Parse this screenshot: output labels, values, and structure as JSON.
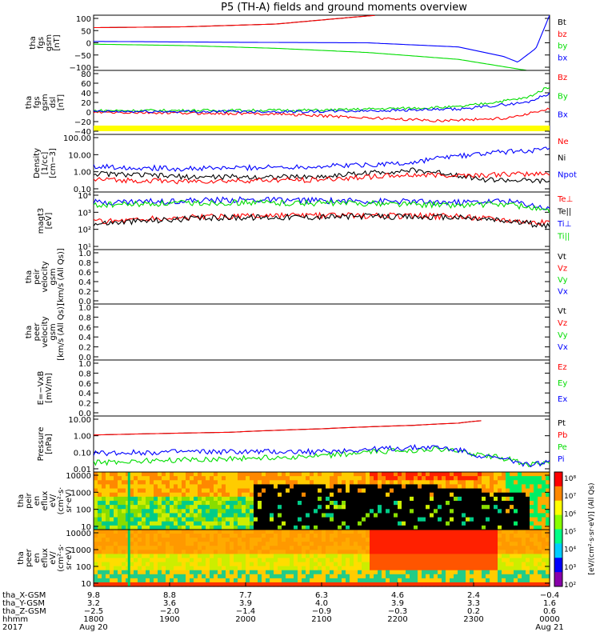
{
  "chart_data": {
    "type": "line",
    "title": "P5 (TH-A) fields and ground moments overview",
    "colors": {
      "black": "#000000",
      "red": "#ff0000",
      "green": "#00dd00",
      "blue": "#0000ff",
      "yellow": "#ffff00"
    },
    "panels": [
      {
        "id": "fgs-gsm",
        "ylabel": [
          "tha",
          "fgs",
          "gsm",
          "[nT]"
        ],
        "yticks": [
          "100",
          "50",
          "0",
          "−50",
          "−100"
        ],
        "legend": [
          "Bt",
          "bz",
          "by",
          "bx"
        ],
        "legend_colors": [
          "black",
          "red",
          "green",
          "blue"
        ],
        "series": [
          {
            "name": "Bt",
            "color": "black",
            "points": [
              [
                0,
                55
              ],
              [
                0.2,
                58
              ],
              [
                0.4,
                68
              ],
              [
                0.55,
                90
              ],
              [
                0.62,
                100
              ]
            ]
          },
          {
            "name": "bz",
            "color": "red",
            "points": [
              [
                0,
                55
              ],
              [
                0.2,
                58
              ],
              [
                0.4,
                68
              ],
              [
                0.55,
                90
              ],
              [
                0.62,
                100
              ]
            ]
          },
          {
            "name": "by",
            "color": "green",
            "points": [
              [
                0,
                -5
              ],
              [
                0.2,
                -10
              ],
              [
                0.4,
                -20
              ],
              [
                0.6,
                -35
              ],
              [
                0.8,
                -60
              ],
              [
                0.95,
                -100
              ]
            ]
          },
          {
            "name": "bx",
            "color": "blue",
            "points": [
              [
                0,
                5
              ],
              [
                0.3,
                2
              ],
              [
                0.6,
                0
              ],
              [
                0.8,
                -15
              ],
              [
                0.9,
                -50
              ],
              [
                0.93,
                -70
              ],
              [
                0.97,
                -20
              ],
              [
                1.0,
                100
              ]
            ]
          }
        ]
      },
      {
        "id": "fgs-gsm-dsl",
        "ylabel": [
          "tha",
          "fgs",
          "gsm",
          "dsl",
          "[nT]"
        ],
        "yticks": [
          "80",
          "60",
          "40",
          "20",
          "0",
          "−20",
          "−40"
        ],
        "legend": [
          "Bz",
          "By",
          "Bx"
        ],
        "legend_colors": [
          "red",
          "green",
          "blue"
        ],
        "series": [
          {
            "name": "Bz",
            "color": "red",
            "points": [
              [
                0,
                -2
              ],
              [
                0.4,
                -5
              ],
              [
                0.75,
                -20
              ],
              [
                0.9,
                -15
              ],
              [
                1.0,
                5
              ]
            ]
          },
          {
            "name": "By",
            "color": "green",
            "points": [
              [
                0,
                2
              ],
              [
                0.5,
                3
              ],
              [
                0.8,
                10
              ],
              [
                0.95,
                30
              ],
              [
                1.0,
                55
              ]
            ]
          },
          {
            "name": "Bx",
            "color": "blue",
            "points": [
              [
                0,
                0
              ],
              [
                0.5,
                0
              ],
              [
                0.8,
                5
              ],
              [
                0.95,
                20
              ],
              [
                1.0,
                40
              ]
            ]
          }
        ]
      },
      {
        "id": "density",
        "ylabel": [
          "Density",
          "[1/cc]",
          "[cm−3]"
        ],
        "yticks": [
          "100.00",
          "10.00",
          "1.00",
          "0.10"
        ],
        "legend": [
          "Ne",
          "Ni",
          "Npot"
        ],
        "legend_colors": [
          "red",
          "black",
          "blue"
        ],
        "series": [
          {
            "name": "Ni",
            "color": "black",
            "points": [
              [
                0,
                0.5
              ],
              [
                0.2,
                0.3
              ],
              [
                0.5,
                0.3
              ],
              [
                0.7,
                0.8
              ],
              [
                0.85,
                0.2
              ],
              [
                1.0,
                0.15
              ]
            ]
          },
          {
            "name": "Ne",
            "color": "red",
            "points": [
              [
                0,
                0.2
              ],
              [
                0.2,
                0.15
              ],
              [
                0.5,
                0.2
              ],
              [
                0.7,
                0.4
              ],
              [
                0.85,
                0.4
              ],
              [
                1.0,
                0.5
              ]
            ]
          },
          {
            "name": "Npot",
            "color": "blue",
            "points": [
              [
                0,
                1.5
              ],
              [
                0.2,
                1.0
              ],
              [
                0.5,
                1.5
              ],
              [
                0.7,
                2.5
              ],
              [
                0.85,
                10
              ],
              [
                1.0,
                20
              ]
            ]
          }
        ]
      },
      {
        "id": "temp",
        "ylabel": [
          "magt3",
          "[eV]"
        ],
        "yticks": [
          "10⁴",
          "10³",
          "10²",
          "10¹"
        ],
        "legend": [
          "Te⊥",
          "Te||",
          "Ti⊥",
          "Ti||"
        ],
        "legend_colors": [
          "red",
          "black",
          "blue",
          "green"
        ],
        "series": [
          {
            "name": "Ti⊥",
            "color": "blue",
            "points": [
              [
                0,
                5000
              ],
              [
                0.3,
                7000
              ],
              [
                0.6,
                6000
              ],
              [
                0.8,
                5000
              ],
              [
                0.9,
                6000
              ],
              [
                1.0,
                2000
              ]
            ]
          },
          {
            "name": "Ti||",
            "color": "green",
            "points": [
              [
                0,
                3500
              ],
              [
                0.3,
                5000
              ],
              [
                0.6,
                4500
              ],
              [
                0.8,
                3500
              ],
              [
                0.9,
                4000
              ],
              [
                1.0,
                1500
              ]
            ]
          },
          {
            "name": "Te⊥",
            "color": "red",
            "points": [
              [
                0,
                400
              ],
              [
                0.3,
                800
              ],
              [
                0.6,
                900
              ],
              [
                0.8,
                800
              ],
              [
                1.0,
                300
              ]
            ]
          },
          {
            "name": "Te||",
            "color": "black",
            "points": [
              [
                0,
                300
              ],
              [
                0.3,
                700
              ],
              [
                0.6,
                800
              ],
              [
                0.8,
                700
              ],
              [
                1.0,
                200
              ]
            ]
          }
        ]
      },
      {
        "id": "peir-vel",
        "ylabel": [
          "tha",
          "peir",
          "velocity",
          "gsm",
          "[km/s (All Qs)]"
        ],
        "yticks": [
          "1.0",
          "0.8",
          "0.6",
          "0.4",
          "0.2",
          "0.0"
        ],
        "legend": [
          "Vt",
          "Vz",
          "Vy",
          "Vx"
        ],
        "legend_colors": [
          "black",
          "red",
          "green",
          "blue"
        ],
        "series": []
      },
      {
        "id": "peer-vel",
        "ylabel": [
          "tha",
          "peer",
          "velocity",
          "gsm",
          "[km/s (All Qs)]"
        ],
        "yticks": [
          "1.0",
          "0.8",
          "0.6",
          "0.4",
          "0.2",
          "0.0"
        ],
        "legend": [
          "Vt",
          "Vz",
          "Vy",
          "Vx"
        ],
        "legend_colors": [
          "black",
          "red",
          "green",
          "blue"
        ],
        "series": []
      },
      {
        "id": "efield",
        "ylabel": [
          "E=−VxB",
          "[mV/m]"
        ],
        "yticks": [
          "1.0",
          "0.8",
          "0.6",
          "0.4",
          "0.2",
          "0.0"
        ],
        "legend": [
          "Ez",
          "Ey",
          "Ex"
        ],
        "legend_colors": [
          "red",
          "green",
          "blue"
        ],
        "series": []
      },
      {
        "id": "pressure",
        "ylabel": [
          "Pressure",
          "[nPa]"
        ],
        "yticks": [
          "10.00",
          "1.00",
          "0.10",
          "0.01"
        ],
        "legend": [
          "Pt",
          "Pb",
          "Pe",
          "Pi"
        ],
        "legend_colors": [
          "black",
          "red",
          "green",
          "blue"
        ],
        "series": [
          {
            "name": "Pt",
            "color": "black",
            "points": [
              [
                0,
                1.2
              ],
              [
                0.3,
                1.8
              ],
              [
                0.5,
                3
              ],
              [
                0.7,
                5
              ],
              [
                0.8,
                7
              ],
              [
                0.85,
                10
              ]
            ]
          },
          {
            "name": "Pb",
            "color": "red",
            "points": [
              [
                0,
                1.2
              ],
              [
                0.3,
                1.8
              ],
              [
                0.5,
                3
              ],
              [
                0.7,
                5
              ],
              [
                0.8,
                7
              ],
              [
                0.85,
                10
              ]
            ]
          },
          {
            "name": "Pe",
            "color": "green",
            "points": [
              [
                0,
                0.02
              ],
              [
                0.2,
                0.03
              ],
              [
                0.5,
                0.05
              ],
              [
                0.75,
                0.15
              ],
              [
                0.85,
                0.06
              ],
              [
                0.95,
                0.015
              ],
              [
                1.0,
                0.02
              ]
            ]
          },
          {
            "name": "Pi",
            "color": "blue",
            "points": [
              [
                0,
                0.08
              ],
              [
                0.2,
                0.1
              ],
              [
                0.5,
                0.1
              ],
              [
                0.75,
                0.2
              ],
              [
                0.85,
                0.05
              ],
              [
                0.95,
                0.015
              ],
              [
                1.0,
                0.02
              ]
            ]
          }
        ]
      },
      {
        "id": "peir-flux",
        "ylabel": [
          "tha",
          "peir",
          "en",
          "eflux",
          "eV/",
          "(cm²·s·",
          "sr·eV)"
        ],
        "yticks": [
          "10000",
          "1000",
          "100",
          "10"
        ],
        "legend": [],
        "legend_colors": [],
        "series": []
      },
      {
        "id": "peer-flux",
        "ylabel": [
          "tha",
          "peer",
          "en",
          "eflux",
          "eV/",
          "(cm²·s·",
          "sr·eV)"
        ],
        "yticks": [
          "10000",
          "1000",
          "100",
          "10"
        ],
        "legend": [],
        "legend_colors": [],
        "series": []
      }
    ],
    "colorbar": {
      "ticks": [
        "10⁸",
        "10⁷",
        "10⁶",
        "10⁵",
        "10⁴",
        "10³",
        "10²"
      ],
      "label": "[eV/(cm²·s·sr·eV)] (All Qs)"
    },
    "x_axis": {
      "labels": [
        "tha_X-GSM",
        "tha_Y-GSM",
        "tha_Z-GSM",
        "hhmm",
        "2017"
      ],
      "rows": [
        [
          "9.8",
          "8.8",
          "7.7",
          "6.3",
          "4.6",
          "2.4",
          "−0.4"
        ],
        [
          "3.2",
          "3.6",
          "3.9",
          "4.0",
          "3.9",
          "3.3",
          "1.6"
        ],
        [
          "−2.5",
          "−2.0",
          "−1.4",
          "−0.9",
          "−0.3",
          "0.2",
          "0.6"
        ],
        [
          "1800",
          "1900",
          "2000",
          "2100",
          "2200",
          "2300",
          "0000"
        ],
        [
          "Aug 20",
          "",
          "",
          "",
          "",
          "",
          "Aug 21"
        ]
      ]
    }
  }
}
